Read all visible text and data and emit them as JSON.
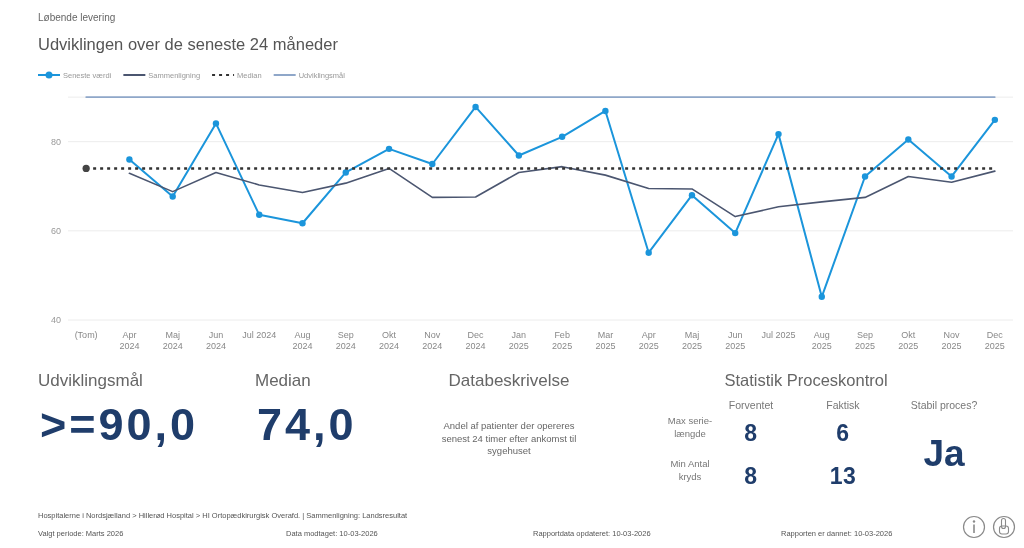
{
  "chart_data": [
    {
      "type": "line",
      "subtitle": "Løbende levering",
      "title": "Udviklingen over de seneste 24 måneder",
      "categories": [
        "(Tom)",
        "Apr 2024",
        "Maj 2024",
        "Jun 2024",
        "Jul 2024",
        "Aug 2024",
        "Sep 2024",
        "Okt 2024",
        "Nov 2024",
        "Dec 2024",
        "Jan 2025",
        "Feb 2025",
        "Mar 2025",
        "Apr 2025",
        "Maj 2025",
        "Jun 2025",
        "Jul 2025",
        "Aug 2025",
        "Sep 2025",
        "Okt 2025",
        "Nov 2025",
        "Dec 2025"
      ],
      "series": [
        {
          "name": "Seneste værdi",
          "color": "#1b95db",
          "marker": "circle",
          "values": [
            null,
            76,
            67.7,
            84.1,
            63.6,
            61.7,
            73.1,
            78.4,
            75,
            87.8,
            76.9,
            81.1,
            86.9,
            55.1,
            68,
            59.5,
            81.7,
            45.2,
            72.2,
            80.5,
            72.2,
            84.9
          ]
        },
        {
          "name": "Sammenligning",
          "color": "#4b5670",
          "values": [
            null,
            72.9,
            68.8,
            73.1,
            70.3,
            68.6,
            70.7,
            74,
            67.5,
            67.6,
            73.1,
            74.4,
            72.5,
            69.5,
            69.4,
            63.2,
            65.4,
            66.5,
            67.5,
            72.2,
            70.9,
            73.4
          ]
        },
        {
          "name": "Median",
          "color": "#333333",
          "line_style": "dotted",
          "values": [
            74,
            74,
            74,
            74,
            74,
            74,
            74,
            74,
            74,
            74,
            74,
            74,
            74,
            74,
            74,
            74,
            74,
            74,
            74,
            74,
            74,
            74
          ]
        },
        {
          "name": "Udviklingsmål",
          "color": "#8fa7c9",
          "values": [
            90,
            90,
            90,
            90,
            90,
            90,
            90,
            90,
            90,
            90,
            90,
            90,
            90,
            90,
            90,
            90,
            90,
            90,
            90,
            90,
            90,
            90
          ]
        },
        {
          "type": "scatter",
          "color": "#444444",
          "marker": "circle",
          "values": [
            74,
            null,
            null,
            null,
            null,
            null,
            null,
            null,
            null,
            null,
            null,
            null,
            null,
            null,
            null,
            null,
            null,
            null,
            null,
            null,
            null,
            null
          ]
        }
      ],
      "ylim": [
        40,
        90
      ],
      "yticks": [
        40,
        60,
        80,
        {
          "value": 90,
          "label": null
        }
      ],
      "grid": "y",
      "legend": "top left",
      "line_style": "solid",
      "annotations": [
        "Hospitalerne i Nordsjælland > Hillerød Hospital > HI Ortopædkirurgisk Overafd. | Sammenligning: Landsresultat",
        "Valgt periode: Marts 2026",
        "Data modtaget: 10-03-2026",
        "Rapportdata opdateret: 10-03-2026",
        "Rapporten er dannet: 10-03-2026"
      ]
    },
    {
      "type": "other",
      "title": "Udviklingsmål",
      "annotations": [
        ">=90,0"
      ]
    },
    {
      "type": "other",
      "title": "Median",
      "annotations": [
        "74,0"
      ]
    },
    {
      "type": "other",
      "title": "Databeskrivelse",
      "annotations": [
        "Andel af patienter der opereres senest 24 timer efter ankomst til sygehuset"
      ]
    },
    {
      "type": "other",
      "title": "Statistik Proceskontrol",
      "categories": [
        "Forventet",
        "Faktisk"
      ],
      "y_categories": [
        "Max serie-længde",
        "Min Antal kryds"
      ],
      "annotations": [
        "8",
        "6",
        "8",
        "13"
      ]
    },
    {
      "type": "other",
      "title": "Stabil proces?",
      "annotations": [
        "Ja"
      ]
    }
  ]
}
